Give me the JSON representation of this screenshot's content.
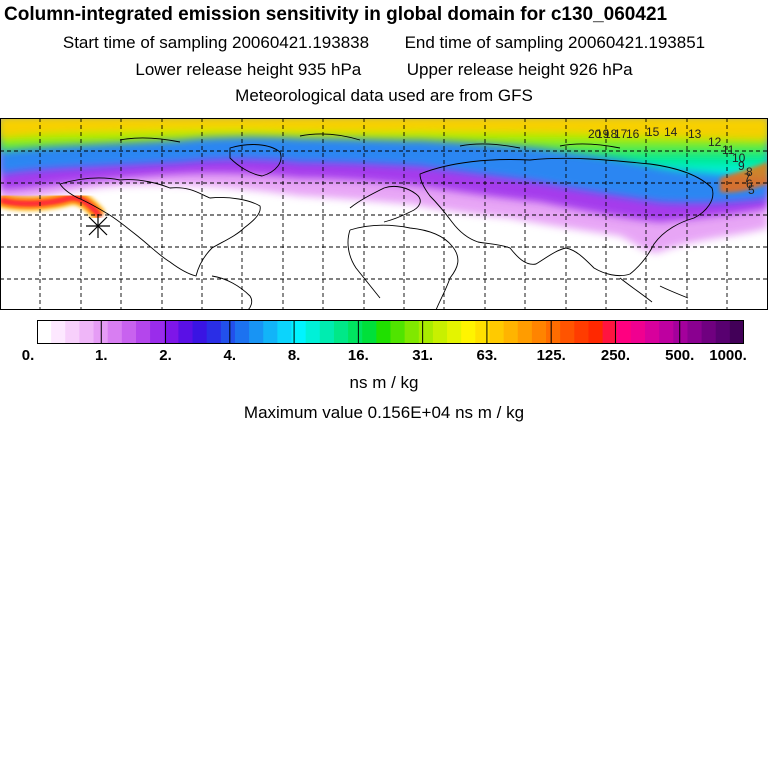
{
  "header": {
    "title": "Column-integrated emission sensitivity in global domain for c130_060421",
    "start_sampling": "Start time of sampling 20060421.193838",
    "end_sampling": "End time of sampling 20060421.193851",
    "lower_release": "Lower release height  935 hPa",
    "upper_release": "Upper release height  926 hPa",
    "met_data": "Meteorological data used are from GFS"
  },
  "map": {
    "projection": "global-latlon",
    "grid": "dashed",
    "release_marker": "asterisk-icon",
    "trajectory_labels": [
      "20",
      "19",
      "18",
      "17",
      "16",
      "15",
      "14",
      "13",
      "12",
      "11",
      "10",
      "9",
      "8",
      "7",
      "6",
      "5"
    ]
  },
  "colorbar": {
    "tick_labels": [
      "0.",
      "1.",
      "2.",
      "4.",
      "8.",
      "16.",
      "31.",
      "63.",
      "125.",
      "250.",
      "500.",
      "1000."
    ],
    "colors": [
      "#ffffff",
      "#fde8ff",
      "#f7d0fb",
      "#efb6f8",
      "#e59cf5",
      "#d87ef2",
      "#c862ef",
      "#b446ec",
      "#9a2ceb",
      "#7e16e8",
      "#5a10e6",
      "#3a14e3",
      "#2a2ee6",
      "#2250ec",
      "#1c72f0",
      "#1894f4",
      "#12b4f8",
      "#0cd4fc",
      "#00f4ff",
      "#00f0d8",
      "#00ecb0",
      "#00e888",
      "#00e460",
      "#00e03a",
      "#20e000",
      "#50e400",
      "#80e800",
      "#a8ec00",
      "#c8f000",
      "#e4f400",
      "#fff400",
      "#ffe000",
      "#ffca00",
      "#ffb400",
      "#ff9c00",
      "#ff8400",
      "#ff6c00",
      "#ff5400",
      "#ff3c00",
      "#ff2800",
      "#ff1440",
      "#ff0080",
      "#f00090",
      "#d8009c",
      "#be00a0",
      "#a4009c",
      "#8a0090",
      "#700080",
      "#580070",
      "#420058"
    ]
  },
  "units": "ns m / kg",
  "maximum": "Maximum value  0.156E+04 ns m / kg"
}
